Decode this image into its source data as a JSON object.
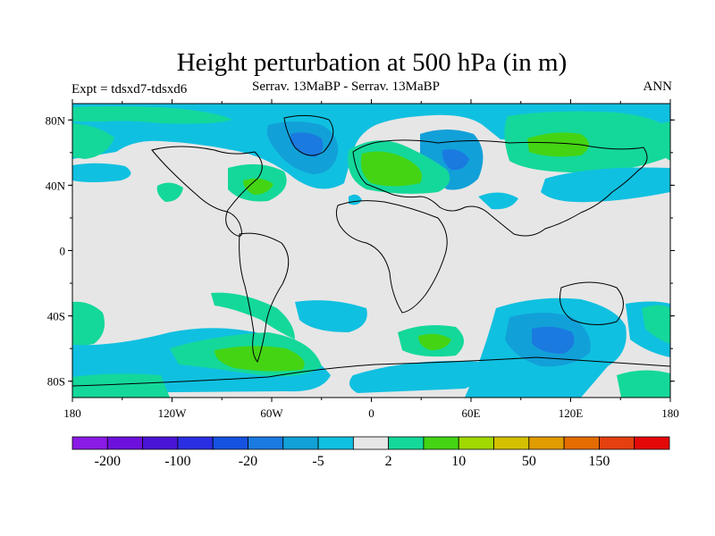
{
  "title": "Height perturbation at 500 hPa (in m)",
  "subtitle_left": "Expt = tdsxd7-tdsxd6",
  "subtitle_center": "Serrav.   13MaBP - Serrav.   13MaBP",
  "subtitle_right": "ANN",
  "lat_labels": [
    "80N",
    "40N",
    "0",
    "40S",
    "80S"
  ],
  "lon_labels": [
    "180",
    "120W",
    "60W",
    "0",
    "60E",
    "120E",
    "180"
  ],
  "colorbar": {
    "colors": [
      "#8a1ae6",
      "#6e10dc",
      "#4a14d6",
      "#2a2ee2",
      "#1652e0",
      "#1a7ae0",
      "#12a0d8",
      "#10c0e0",
      "#e6e6e6",
      "#14d89a",
      "#44d414",
      "#a0d800",
      "#d4c000",
      "#e09c00",
      "#e46c00",
      "#e44010",
      "#e40808"
    ],
    "labels": [
      "-200",
      "-100",
      "-20",
      "-5",
      "2",
      "10",
      "50",
      "150"
    ]
  },
  "colors": {
    "background": "#e6e6e6",
    "neg_light": "#10c0e0",
    "neg_mid": "#12a0d8",
    "neg_dark": "#1a7ae0",
    "pos_light": "#14d89a",
    "pos_mid": "#44d414"
  }
}
